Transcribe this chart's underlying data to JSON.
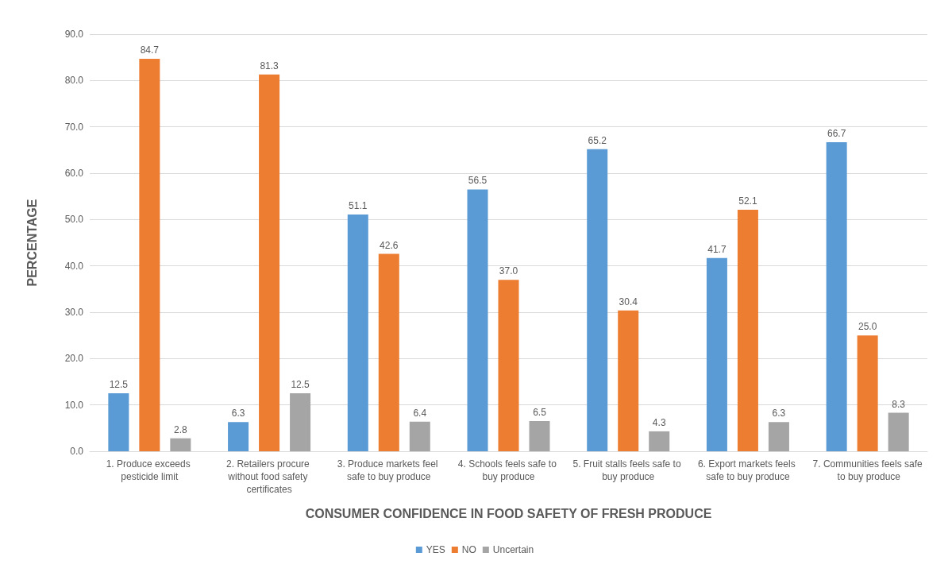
{
  "chart_data": {
    "type": "bar",
    "xlabel": "CONSUMER CONFIDENCE IN FOOD SAFETY OF FRESH PRODUCE",
    "ylabel": "PERCENTAGE",
    "categories": [
      "1. Produce exceeds pesticide limit",
      "2. Retailers procure without food safety certificates",
      "3. Produce markets feel safe to buy produce",
      "4. Schools feels safe to buy produce",
      "5. Fruit stalls feels safe to buy produce",
      "6. Export markets feels safe to buy produce",
      "7. Communities feels safe to buy produce"
    ],
    "series": [
      {
        "name": "YES",
        "color": "#5b9bd5",
        "values": [
          12.5,
          6.3,
          51.1,
          56.5,
          65.2,
          41.7,
          66.7
        ],
        "value_labels": [
          "12.5",
          "6.3",
          "51.1",
          "56.5",
          "65.2",
          "41.7",
          "66.7"
        ]
      },
      {
        "name": "NO",
        "color": "#ed7d31",
        "values": [
          84.7,
          81.3,
          42.6,
          37.0,
          30.4,
          52.1,
          25.0
        ],
        "value_labels": [
          "84.7",
          "81.3",
          "42.6",
          "37.0",
          "30.4",
          "52.1",
          "25.0"
        ]
      },
      {
        "name": "Uncertain",
        "color": "#a5a5a5",
        "values": [
          2.8,
          12.5,
          6.4,
          6.5,
          4.3,
          6.3,
          8.3
        ],
        "value_labels": [
          "2.8",
          "12.5",
          "6.4",
          "6.5",
          "4.3",
          "6.3",
          "8.3"
        ]
      }
    ],
    "ylim": [
      0,
      90
    ],
    "yticks": [
      {
        "value": 0,
        "label": "0.0"
      },
      {
        "value": 10,
        "label": "10.0"
      },
      {
        "value": 20,
        "label": "20.0"
      },
      {
        "value": 30,
        "label": "30.0"
      },
      {
        "value": 40,
        "label": "40.0"
      },
      {
        "value": 50,
        "label": "50.0"
      },
      {
        "value": 60,
        "label": "60.0"
      },
      {
        "value": 70,
        "label": "70.0"
      },
      {
        "value": 80,
        "label": "80.0"
      },
      {
        "value": 90,
        "label": "90.0"
      }
    ],
    "grid": "y",
    "legend": "bottom"
  }
}
